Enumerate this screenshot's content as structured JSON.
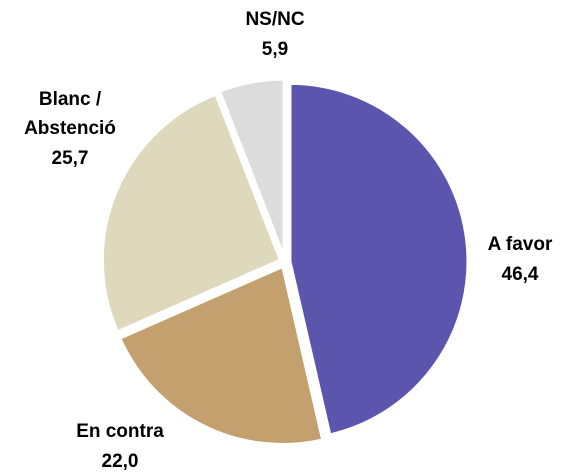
{
  "chart_data": {
    "type": "pie",
    "categories": [
      "A favor",
      "En contra",
      "Blanc / Abstenció",
      "NS/NC"
    ],
    "values": [
      46.4,
      22.0,
      25.7,
      5.9
    ],
    "value_labels": [
      "46,4",
      "22,0",
      "25,7",
      "5,9"
    ],
    "colors": [
      "#5b55ae",
      "#c4a06e",
      "#ded9bc",
      "#dcdcdd"
    ]
  }
}
